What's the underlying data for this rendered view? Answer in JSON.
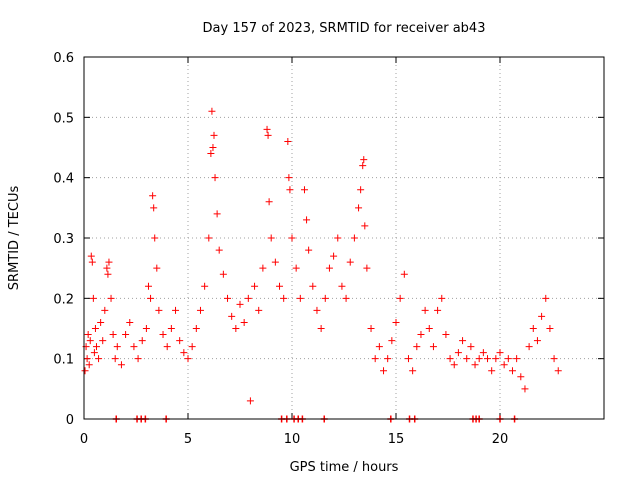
{
  "chart_data": {
    "type": "scatter",
    "title": "Day 157 of 2023, SRMTID for receiver ab43",
    "xlabel": "GPS time / hours",
    "ylabel": "SRMTID / TECUs",
    "xlim": [
      0,
      25
    ],
    "ylim": [
      0,
      0.6
    ],
    "xticks": [
      0,
      5,
      10,
      15,
      20
    ],
    "yticks": [
      0,
      0.1,
      0.2,
      0.3,
      0.4,
      0.5,
      0.6
    ],
    "xtick_labels": [
      "0",
      "5",
      "10",
      "15",
      "20"
    ],
    "ytick_labels": [
      "0",
      "0.1",
      "0.2",
      "0.3",
      "0.4",
      "0.5",
      "0.6"
    ],
    "grid": true,
    "marker": "+",
    "color": "#ff0000",
    "series": [
      {
        "name": "SRMTID",
        "points": [
          [
            0.05,
            0.08
          ],
          [
            0.1,
            0.12
          ],
          [
            0.15,
            0.1
          ],
          [
            0.2,
            0.14
          ],
          [
            0.25,
            0.09
          ],
          [
            0.3,
            0.13
          ],
          [
            0.35,
            0.27
          ],
          [
            0.4,
            0.26
          ],
          [
            0.45,
            0.2
          ],
          [
            0.5,
            0.11
          ],
          [
            0.55,
            0.15
          ],
          [
            0.6,
            0.12
          ],
          [
            0.7,
            0.1
          ],
          [
            0.8,
            0.16
          ],
          [
            0.9,
            0.13
          ],
          [
            1.0,
            0.18
          ],
          [
            1.1,
            0.25
          ],
          [
            1.15,
            0.24
          ],
          [
            1.2,
            0.26
          ],
          [
            1.3,
            0.2
          ],
          [
            1.4,
            0.14
          ],
          [
            1.5,
            0.1
          ],
          [
            1.6,
            0.12
          ],
          [
            1.8,
            0.09
          ],
          [
            2.0,
            0.14
          ],
          [
            2.2,
            0.16
          ],
          [
            2.4,
            0.12
          ],
          [
            2.6,
            0.1
          ],
          [
            2.8,
            0.13
          ],
          [
            3.0,
            0.15
          ],
          [
            3.1,
            0.22
          ],
          [
            3.2,
            0.2
          ],
          [
            3.3,
            0.37
          ],
          [
            3.35,
            0.35
          ],
          [
            3.4,
            0.3
          ],
          [
            3.5,
            0.25
          ],
          [
            3.6,
            0.18
          ],
          [
            3.8,
            0.14
          ],
          [
            4.0,
            0.12
          ],
          [
            4.2,
            0.15
          ],
          [
            4.4,
            0.18
          ],
          [
            4.6,
            0.13
          ],
          [
            4.8,
            0.11
          ],
          [
            5.0,
            0.1
          ],
          [
            5.2,
            0.12
          ],
          [
            5.4,
            0.15
          ],
          [
            5.6,
            0.18
          ],
          [
            5.8,
            0.22
          ],
          [
            6.0,
            0.3
          ],
          [
            6.1,
            0.44
          ],
          [
            6.15,
            0.51
          ],
          [
            6.2,
            0.45
          ],
          [
            6.25,
            0.47
          ],
          [
            6.3,
            0.4
          ],
          [
            6.4,
            0.34
          ],
          [
            6.5,
            0.28
          ],
          [
            6.7,
            0.24
          ],
          [
            6.9,
            0.2
          ],
          [
            7.1,
            0.17
          ],
          [
            7.3,
            0.15
          ],
          [
            7.5,
            0.19
          ],
          [
            7.7,
            0.16
          ],
          [
            7.9,
            0.2
          ],
          [
            8.0,
            0.03
          ],
          [
            8.2,
            0.22
          ],
          [
            8.4,
            0.18
          ],
          [
            8.6,
            0.25
          ],
          [
            8.8,
            0.48
          ],
          [
            8.85,
            0.47
          ],
          [
            8.9,
            0.36
          ],
          [
            9.0,
            0.3
          ],
          [
            9.2,
            0.26
          ],
          [
            9.4,
            0.22
          ],
          [
            9.6,
            0.2
          ],
          [
            9.8,
            0.46
          ],
          [
            9.85,
            0.4
          ],
          [
            9.9,
            0.38
          ],
          [
            10.0,
            0.3
          ],
          [
            10.2,
            0.25
          ],
          [
            10.4,
            0.2
          ],
          [
            10.6,
            0.38
          ],
          [
            10.7,
            0.33
          ],
          [
            10.8,
            0.28
          ],
          [
            11.0,
            0.22
          ],
          [
            11.2,
            0.18
          ],
          [
            11.4,
            0.15
          ],
          [
            11.6,
            0.2
          ],
          [
            11.8,
            0.25
          ],
          [
            12.0,
            0.27
          ],
          [
            12.2,
            0.3
          ],
          [
            12.4,
            0.22
          ],
          [
            12.6,
            0.2
          ],
          [
            12.8,
            0.26
          ],
          [
            13.0,
            0.3
          ],
          [
            13.2,
            0.35
          ],
          [
            13.3,
            0.38
          ],
          [
            13.4,
            0.42
          ],
          [
            13.45,
            0.43
          ],
          [
            13.5,
            0.32
          ],
          [
            13.6,
            0.25
          ],
          [
            13.8,
            0.15
          ],
          [
            14.0,
            0.1
          ],
          [
            14.2,
            0.12
          ],
          [
            14.4,
            0.08
          ],
          [
            14.6,
            0.1
          ],
          [
            14.8,
            0.13
          ],
          [
            15.0,
            0.16
          ],
          [
            15.2,
            0.2
          ],
          [
            15.4,
            0.24
          ],
          [
            15.6,
            0.1
          ],
          [
            15.8,
            0.08
          ],
          [
            16.0,
            0.12
          ],
          [
            16.2,
            0.14
          ],
          [
            16.4,
            0.18
          ],
          [
            16.6,
            0.15
          ],
          [
            16.8,
            0.12
          ],
          [
            17.0,
            0.18
          ],
          [
            17.2,
            0.2
          ],
          [
            17.4,
            0.14
          ],
          [
            17.6,
            0.1
          ],
          [
            17.8,
            0.09
          ],
          [
            18.0,
            0.11
          ],
          [
            18.2,
            0.13
          ],
          [
            18.4,
            0.1
          ],
          [
            18.6,
            0.12
          ],
          [
            18.8,
            0.09
          ],
          [
            19.0,
            0.1
          ],
          [
            19.2,
            0.11
          ],
          [
            19.4,
            0.1
          ],
          [
            19.6,
            0.08
          ],
          [
            19.8,
            0.1
          ],
          [
            20.0,
            0.11
          ],
          [
            20.2,
            0.09
          ],
          [
            20.4,
            0.1
          ],
          [
            20.6,
            0.08
          ],
          [
            20.8,
            0.1
          ],
          [
            21.0,
            0.07
          ],
          [
            21.2,
            0.05
          ],
          [
            21.4,
            0.12
          ],
          [
            21.6,
            0.15
          ],
          [
            21.8,
            0.13
          ],
          [
            22.0,
            0.17
          ],
          [
            22.2,
            0.2
          ],
          [
            22.4,
            0.15
          ],
          [
            22.6,
            0.1
          ],
          [
            22.8,
            0.08
          ]
        ]
      }
    ],
    "zero_markers": [
      1.55,
      2.55,
      2.75,
      2.95,
      3.95,
      9.5,
      9.75,
      10.1,
      10.3,
      10.5,
      11.55,
      14.75,
      15.65,
      15.9,
      18.7,
      18.85,
      19.0,
      20.0,
      20.7
    ]
  }
}
